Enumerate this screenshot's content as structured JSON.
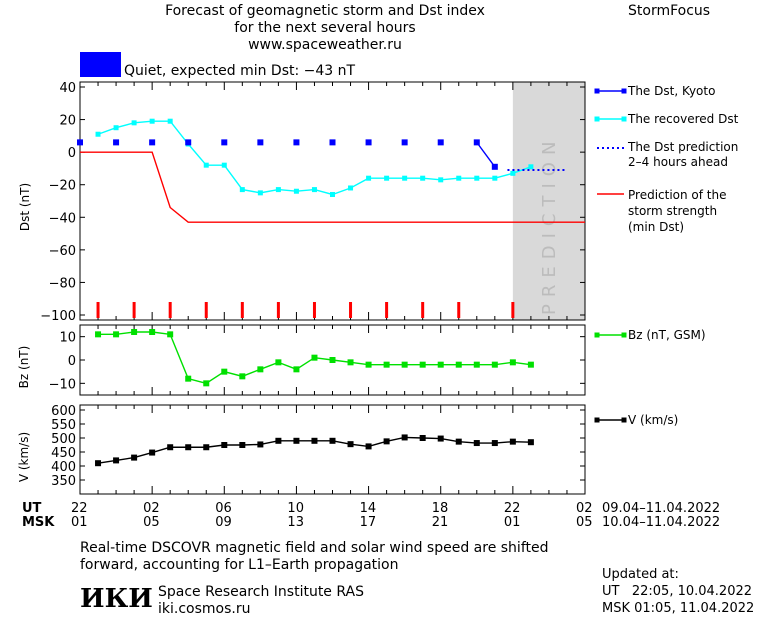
{
  "header": {
    "title_lines": [
      "Forecast of geomagnetic storm and Dst index",
      "for the next several hours",
      "www.spaceweather.ru"
    ],
    "brand": "StormFocus"
  },
  "status": {
    "color": "#0000ff",
    "text": "Quiet, expected min Dst: −43 nT"
  },
  "colors": {
    "dst_kyoto": "#0000ff",
    "recovered": "#00ffff",
    "prediction": "#ff0000",
    "bz": "#00e000",
    "v": "#000000",
    "prediction_zone": "#d9d9d9"
  },
  "legend": {
    "dst_kyoto": "The Dst, Kyoto",
    "recovered": "The recovered Dst",
    "dst_prediction": [
      "The Dst prediction",
      "2–4 hours ahead"
    ],
    "storm_prediction": [
      "Prediction of the",
      "storm strength",
      "(min Dst)"
    ],
    "bz": "Bz (nT, GSM)",
    "v": "V (km/s)"
  },
  "chart_data": [
    {
      "type": "line",
      "ylabel": "Dst (nT)",
      "ylim": [
        -100,
        40
      ],
      "yticks": [
        "40",
        "20",
        "0",
        "−20",
        "−40",
        "−60",
        "−80",
        "−100"
      ],
      "xlim": [
        22,
        50
      ],
      "prediction_zone": {
        "from": 46,
        "to": 50,
        "label": "PREDICTION"
      },
      "series": [
        {
          "name": "The Dst, Kyoto",
          "style": "markers",
          "x": [
            22,
            24,
            26,
            28,
            30,
            32,
            34,
            36,
            38,
            40,
            42,
            44,
            45
          ],
          "y": [
            6,
            6,
            6,
            6,
            6,
            6,
            6,
            6,
            6,
            6,
            6,
            6,
            -9
          ]
        },
        {
          "name": "The recovered Dst",
          "x": [
            23,
            24,
            25,
            26,
            27,
            28,
            29,
            30,
            31,
            32,
            33,
            34,
            35,
            36,
            37,
            38,
            39,
            40,
            41,
            42,
            43,
            44,
            45,
            46,
            47
          ],
          "y": [
            11,
            15,
            18,
            19,
            19,
            5,
            -8,
            -8,
            -23,
            -25,
            -23,
            -24,
            -23,
            -26,
            -22,
            -16,
            -16,
            -16,
            -16,
            -17,
            -16,
            -16,
            -16,
            -13,
            -9
          ]
        },
        {
          "name": "The Dst prediction 2–4 hours ahead",
          "style": "dotted",
          "x": [
            45.7,
            49
          ],
          "y": [
            -11,
            -11
          ]
        },
        {
          "name": "Prediction of the storm strength (min Dst)",
          "x": [
            22,
            26,
            27,
            28,
            50
          ],
          "y": [
            0,
            0,
            -34,
            -43,
            -43
          ]
        }
      ],
      "event_markers_x": [
        23,
        25,
        27,
        29,
        31,
        33,
        35,
        37,
        39,
        41,
        43,
        46
      ]
    },
    {
      "type": "line",
      "ylabel": "Bz (nT)",
      "ylim": [
        -15,
        15
      ],
      "yticks": [
        "10",
        "0",
        "−10"
      ],
      "series": [
        {
          "name": "Bz (nT, GSM)",
          "x": [
            23,
            24,
            25,
            26,
            27,
            28,
            29,
            30,
            31,
            32,
            33,
            34,
            35,
            36,
            37,
            38,
            39,
            40,
            41,
            42,
            43,
            44,
            45,
            46,
            47
          ],
          "y": [
            11,
            11,
            12,
            12,
            11,
            -8,
            -10,
            -5,
            -7,
            -4,
            -1,
            -4,
            1,
            0,
            -1,
            -2,
            -2,
            -2,
            -2,
            -2,
            -2,
            -2,
            -2,
            -1,
            -2
          ]
        }
      ]
    },
    {
      "type": "line",
      "ylabel": "V (km/s)",
      "ylim": [
        300,
        600
      ],
      "yticks": [
        "600",
        "550",
        "500",
        "450",
        "400",
        "350"
      ],
      "series": [
        {
          "name": "V (km/s)",
          "x": [
            23,
            24,
            25,
            26,
            27,
            28,
            29,
            30,
            31,
            32,
            33,
            34,
            35,
            36,
            37,
            38,
            39,
            40,
            41,
            42,
            43,
            44,
            45,
            46,
            47
          ],
          "y": [
            410,
            420,
            430,
            448,
            467,
            467,
            467,
            475,
            475,
            477,
            490,
            490,
            490,
            490,
            478,
            470,
            488,
            502,
            500,
            498,
            487,
            482,
            482,
            487,
            485
          ]
        }
      ]
    }
  ],
  "time_axis": {
    "ut_label": "UT",
    "msk_label": "MSK",
    "ut_ticks": [
      "22",
      "02",
      "06",
      "10",
      "14",
      "18",
      "22",
      "02"
    ],
    "msk_ticks": [
      "01",
      "05",
      "09",
      "13",
      "17",
      "21",
      "01",
      "05"
    ],
    "ut_range": "09.04–11.04.2022",
    "msk_range": "10.04–11.04.2022"
  },
  "footer": {
    "note_lines": [
      "Real-time DSCOVR magnetic field and solar wind speed are shifted",
      "forward, accounting for L1–Earth propagation"
    ],
    "logo": "ИКИ",
    "institute": "Space Research Institute RAS",
    "site": "iki.cosmos.ru",
    "updated_label": "Updated at:",
    "updated_ut": "UT   22:05, 10.04.2022",
    "updated_msk": "MSK 01:05, 11.04.2022"
  }
}
